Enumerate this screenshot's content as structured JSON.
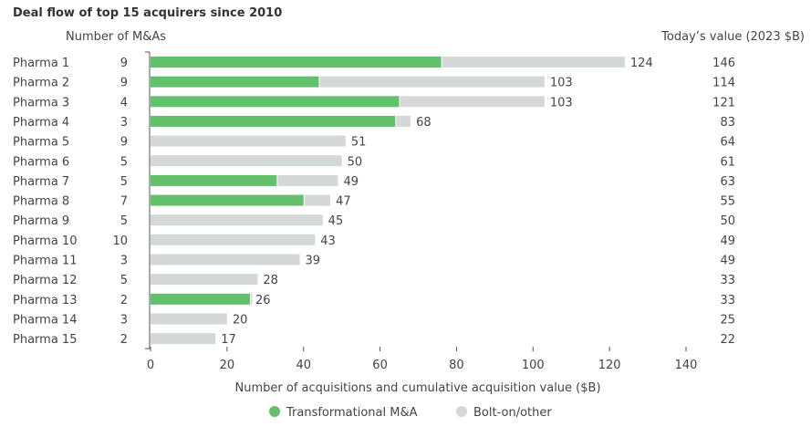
{
  "colors": {
    "transformational": "#63c16c",
    "bolt_on": "#d4d8d6",
    "axis": "#555555"
  },
  "chart_data": {
    "type": "bar",
    "orientation": "horizontal",
    "stacked": true,
    "title": "Deal flow of top 15 acquirers since 2010",
    "left_header": "Number of M&As",
    "right_header": "Today’s value (2023 $B)",
    "xlabel": "Number of acquisitions and cumulative acquisition value ($B)",
    "xlim": [
      0,
      140
    ],
    "xticks": [
      0,
      20,
      40,
      60,
      80,
      100,
      120,
      140
    ],
    "legend": [
      "Transformational M&A",
      "Bolt-on/other"
    ],
    "categories": [
      "Pharma 1",
      "Pharma 2",
      "Pharma 3",
      "Pharma 4",
      "Pharma 5",
      "Pharma 6",
      "Pharma 7",
      "Pharma 8",
      "Pharma 9",
      "Pharma 10",
      "Pharma 11",
      "Pharma 12",
      "Pharma 13",
      "Pharma 14",
      "Pharma 15"
    ],
    "num_mas": [
      "9",
      "9",
      "4",
      "3",
      "9",
      "5",
      "5",
      "7",
      "5",
      "10",
      "3",
      "5",
      "2",
      "3",
      "2"
    ],
    "series": [
      {
        "name": "Transformational M&A",
        "values": [
          76,
          44,
          65,
          64,
          0,
          0,
          33,
          40,
          0,
          0,
          0,
          0,
          26,
          0,
          0
        ]
      },
      {
        "name": "Bolt-on/other",
        "values": [
          48,
          59,
          38,
          4,
          51,
          50,
          16,
          7,
          45,
          43,
          39,
          28,
          0,
          20,
          17
        ]
      }
    ],
    "totals": [
      "124",
      "103",
      "103",
      "68",
      "51",
      "50",
      "49",
      "47",
      "45",
      "43",
      "39",
      "28",
      "26",
      "20",
      "17"
    ],
    "todays_value": [
      "146",
      "114",
      "121",
      "83",
      "64",
      "61",
      "63",
      "55",
      "50",
      "49",
      "49",
      "33",
      "33",
      "25",
      "22"
    ]
  }
}
